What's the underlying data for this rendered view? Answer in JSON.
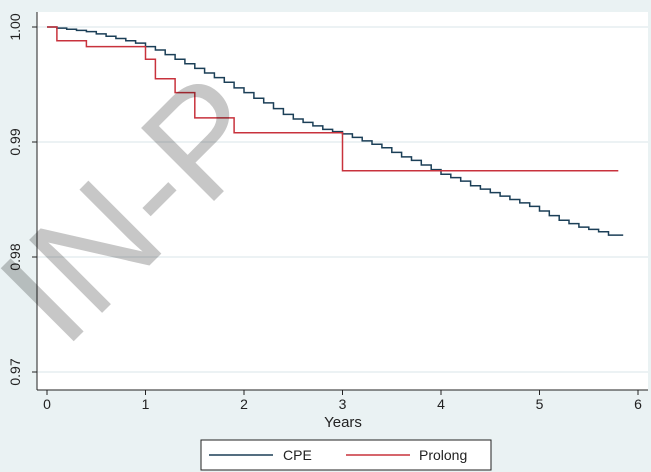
{
  "chart_data": {
    "type": "line",
    "title": "",
    "xlabel": "Years",
    "ylabel": "",
    "xlim": [
      0,
      6
    ],
    "ylim": [
      0.97,
      1.0
    ],
    "x_ticks": [
      0,
      1,
      2,
      3,
      4,
      5,
      6
    ],
    "y_ticks": [
      0.97,
      0.98,
      0.99,
      1.0
    ],
    "y_tick_labels": [
      "0.97",
      "0.98",
      "0.99",
      "1.00"
    ],
    "grid": true,
    "legend_position": "bottom",
    "watermark": "IN-P",
    "series": [
      {
        "name": "CPE",
        "color": "#1b3f57",
        "step": true,
        "x": [
          0,
          0.1,
          0.2,
          0.3,
          0.4,
          0.5,
          0.6,
          0.7,
          0.8,
          0.9,
          1.0,
          1.1,
          1.2,
          1.3,
          1.4,
          1.5,
          1.6,
          1.7,
          1.8,
          1.9,
          2.0,
          2.1,
          2.2,
          2.3,
          2.4,
          2.5,
          2.6,
          2.7,
          2.8,
          2.9,
          3.0,
          3.1,
          3.2,
          3.3,
          3.4,
          3.5,
          3.6,
          3.7,
          3.8,
          3.9,
          4.0,
          4.1,
          4.2,
          4.3,
          4.4,
          4.5,
          4.6,
          4.7,
          4.8,
          4.9,
          5.0,
          5.1,
          5.2,
          5.3,
          5.4,
          5.5,
          5.6,
          5.7,
          5.85
        ],
        "y": [
          1.0,
          0.9999,
          0.9998,
          0.9997,
          0.9996,
          0.9994,
          0.9992,
          0.999,
          0.9988,
          0.9986,
          0.9983,
          0.998,
          0.9976,
          0.9972,
          0.9968,
          0.9964,
          0.996,
          0.9956,
          0.9952,
          0.9947,
          0.9943,
          0.9938,
          0.9934,
          0.9929,
          0.9924,
          0.992,
          0.9917,
          0.9914,
          0.9911,
          0.9909,
          0.9907,
          0.9904,
          0.9901,
          0.9898,
          0.9895,
          0.9891,
          0.9887,
          0.9884,
          0.988,
          0.9876,
          0.9872,
          0.9869,
          0.9866,
          0.9862,
          0.9859,
          0.9856,
          0.9853,
          0.985,
          0.9847,
          0.9844,
          0.984,
          0.9836,
          0.9832,
          0.9829,
          0.9826,
          0.9824,
          0.9822,
          0.9819,
          0.9819
        ]
      },
      {
        "name": "Prolong",
        "color": "#c8323c",
        "step": true,
        "x": [
          0,
          0.1,
          0.4,
          1.0,
          1.1,
          1.3,
          1.5,
          1.9,
          3.0,
          4.1,
          5.8
        ],
        "y": [
          1.0,
          0.9988,
          0.9983,
          0.9972,
          0.9955,
          0.9943,
          0.9921,
          0.9908,
          0.9875,
          0.9875,
          0.9875
        ]
      }
    ]
  }
}
